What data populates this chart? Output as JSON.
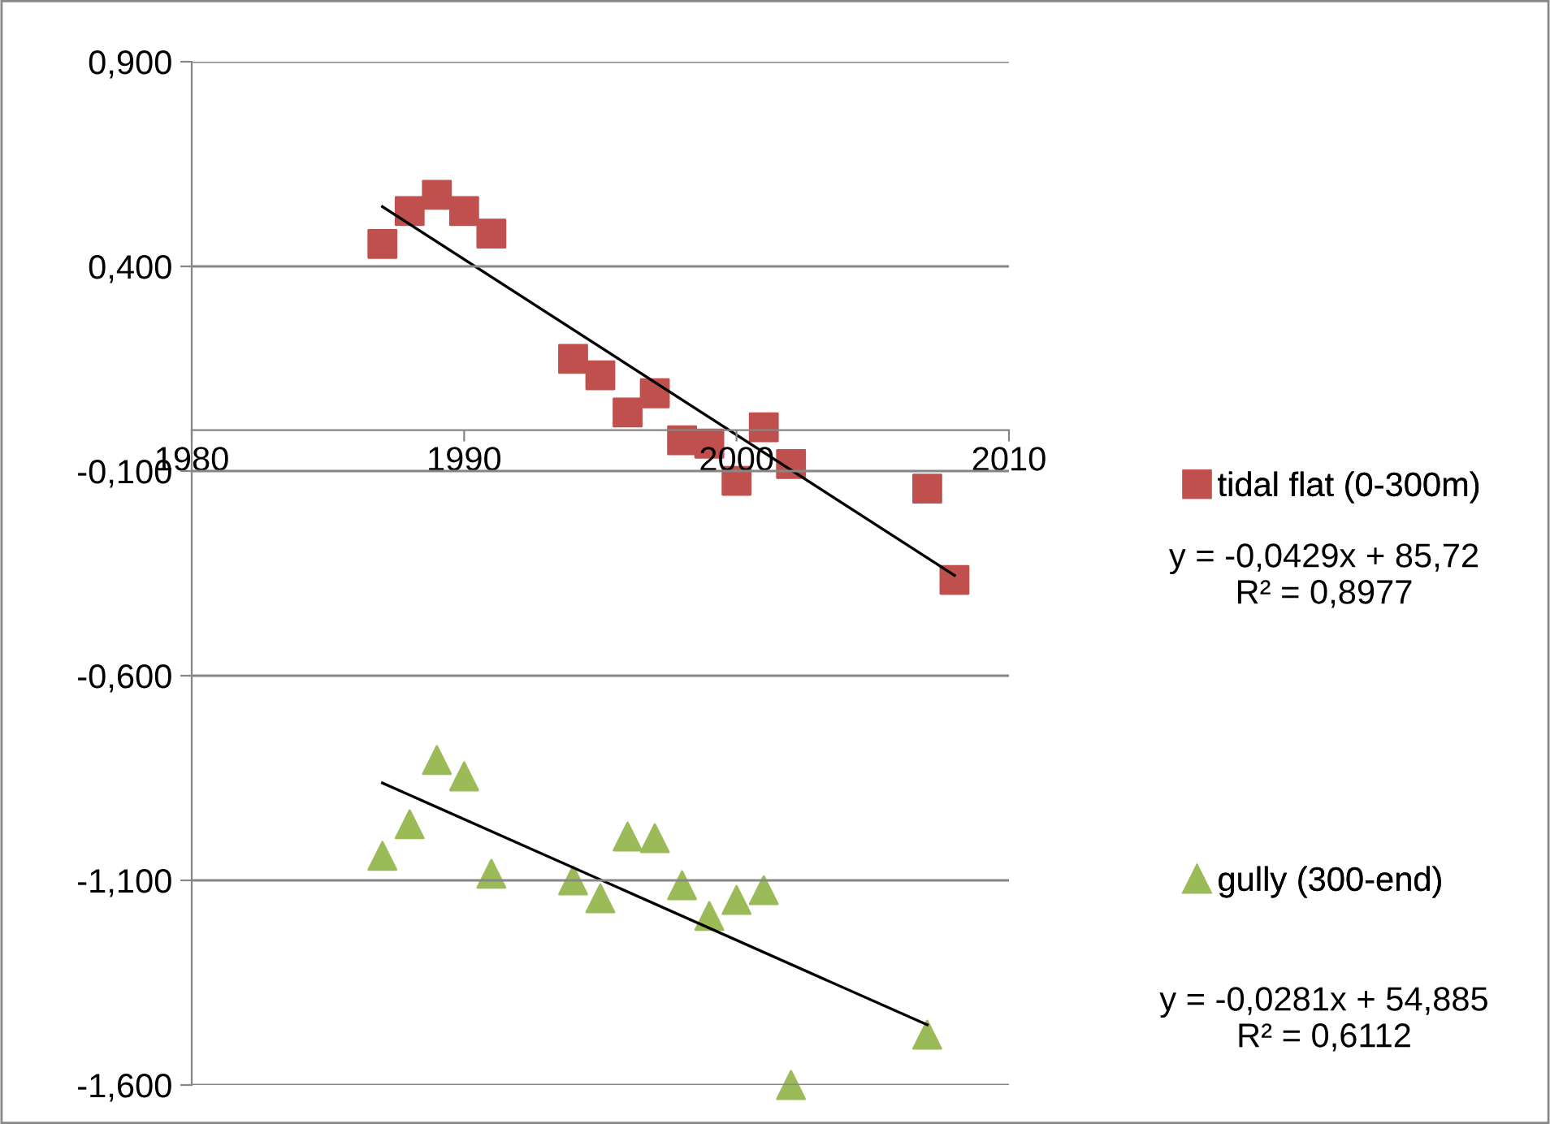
{
  "chart_data": {
    "type": "scatter",
    "xlim": [
      1980,
      2010
    ],
    "xticks": [
      1980,
      1990,
      2000,
      2010
    ],
    "ylim": [
      -1.6,
      0.9
    ],
    "yticks": [
      {
        "value": 0.9,
        "label": "0,900"
      },
      {
        "value": 0.4,
        "label": "0,400"
      },
      {
        "value": -0.1,
        "label": "-0,100"
      },
      {
        "value": -0.6,
        "label": "-0,600"
      },
      {
        "value": -1.1,
        "label": "-1,100"
      },
      {
        "value": -1.6,
        "label": "-1,600"
      }
    ],
    "grid": "y",
    "legend": "right",
    "series": [
      {
        "name": "tidal flat (0-300m)",
        "color": "#c0504d",
        "marker": "square",
        "x": [
          1987,
          1988,
          1989,
          1990,
          1991,
          1994,
          1995,
          1996,
          1997,
          1998,
          1999,
          2000,
          2001,
          2002,
          2007,
          2008
        ],
        "values": [
          0.455,
          0.535,
          0.575,
          0.535,
          0.48,
          0.174,
          0.134,
          0.043,
          0.09,
          -0.025,
          -0.033,
          -0.124,
          0.007,
          -0.083,
          -0.143,
          -0.366
        ]
      },
      {
        "type": "line",
        "color": "#000000",
        "marker": "none",
        "x": [
          1987,
          2008
        ],
        "values": [
          0.546,
          -0.355
        ]
      },
      {
        "name": "gully (300-end)",
        "color": "#9bbb59",
        "marker": "triangle",
        "x": [
          1987,
          1988,
          1989,
          1990,
          1991,
          1994,
          1995,
          1996,
          1997,
          1998,
          1999,
          2000,
          2001,
          2002,
          2007
        ],
        "values": [
          -1.04,
          -0.963,
          -0.806,
          -0.846,
          -1.084,
          -1.1,
          -1.144,
          -0.993,
          -0.997,
          -1.112,
          -1.187,
          -1.148,
          -1.124,
          -1.6,
          -1.477
        ]
      },
      {
        "type": "line",
        "color": "#000000",
        "marker": "none",
        "x": [
          1987,
          2007
        ],
        "values": [
          -0.862,
          -1.453
        ]
      }
    ],
    "annotations": [
      "y = -0,0429x + 85,72\nR² = 0,8977",
      "y = -0,0281x + 54,885\nR² = 0,6112"
    ]
  }
}
